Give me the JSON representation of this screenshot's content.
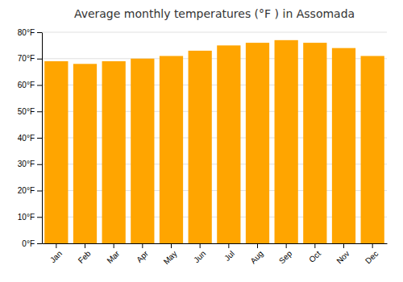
{
  "chart_data": {
    "type": "bar",
    "title": "Average monthly temperatures (°F ) in Assomada",
    "categories": [
      "Jan",
      "Feb",
      "Mar",
      "Apr",
      "May",
      "Jun",
      "Jul",
      "Aug",
      "Sep",
      "Oct",
      "Nov",
      "Dec"
    ],
    "values": [
      69,
      68,
      69,
      70,
      71,
      73,
      75,
      76,
      77,
      76,
      74,
      71
    ],
    "color": "#FFA500",
    "ylim": [
      0,
      80
    ],
    "yticks": [
      {
        "value": 0,
        "label": "0°F"
      },
      {
        "value": 10,
        "label": "10°F"
      },
      {
        "value": 20,
        "label": "20°F"
      },
      {
        "value": 30,
        "label": "30°F"
      },
      {
        "value": 40,
        "label": "40°F"
      },
      {
        "value": 50,
        "label": "50°F"
      },
      {
        "value": 60,
        "label": "60°F"
      },
      {
        "value": 70,
        "label": "70°F"
      },
      {
        "value": 80,
        "label": "80°F"
      }
    ],
    "grid": true
  }
}
